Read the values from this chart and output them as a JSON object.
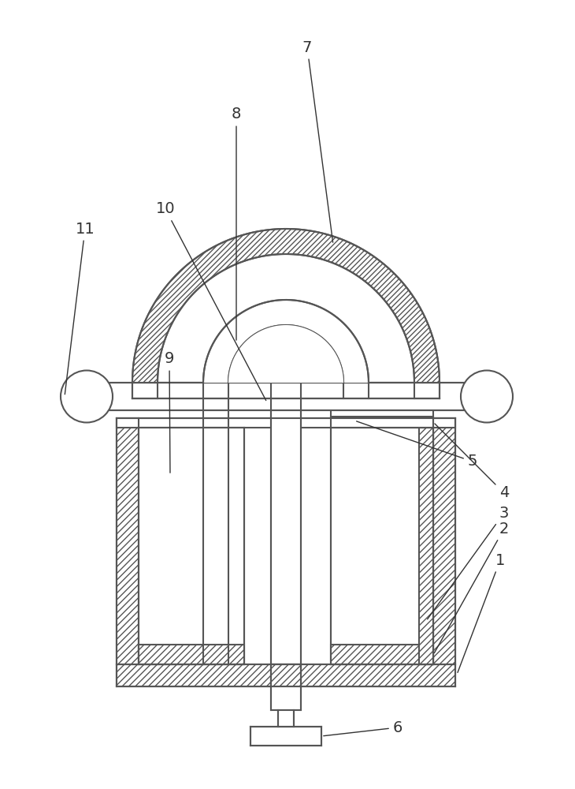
{
  "bg_color": "#ffffff",
  "line_color": "#555555",
  "label_color": "#333333",
  "figsize": [
    7.3,
    10.0
  ],
  "dpi": 100
}
